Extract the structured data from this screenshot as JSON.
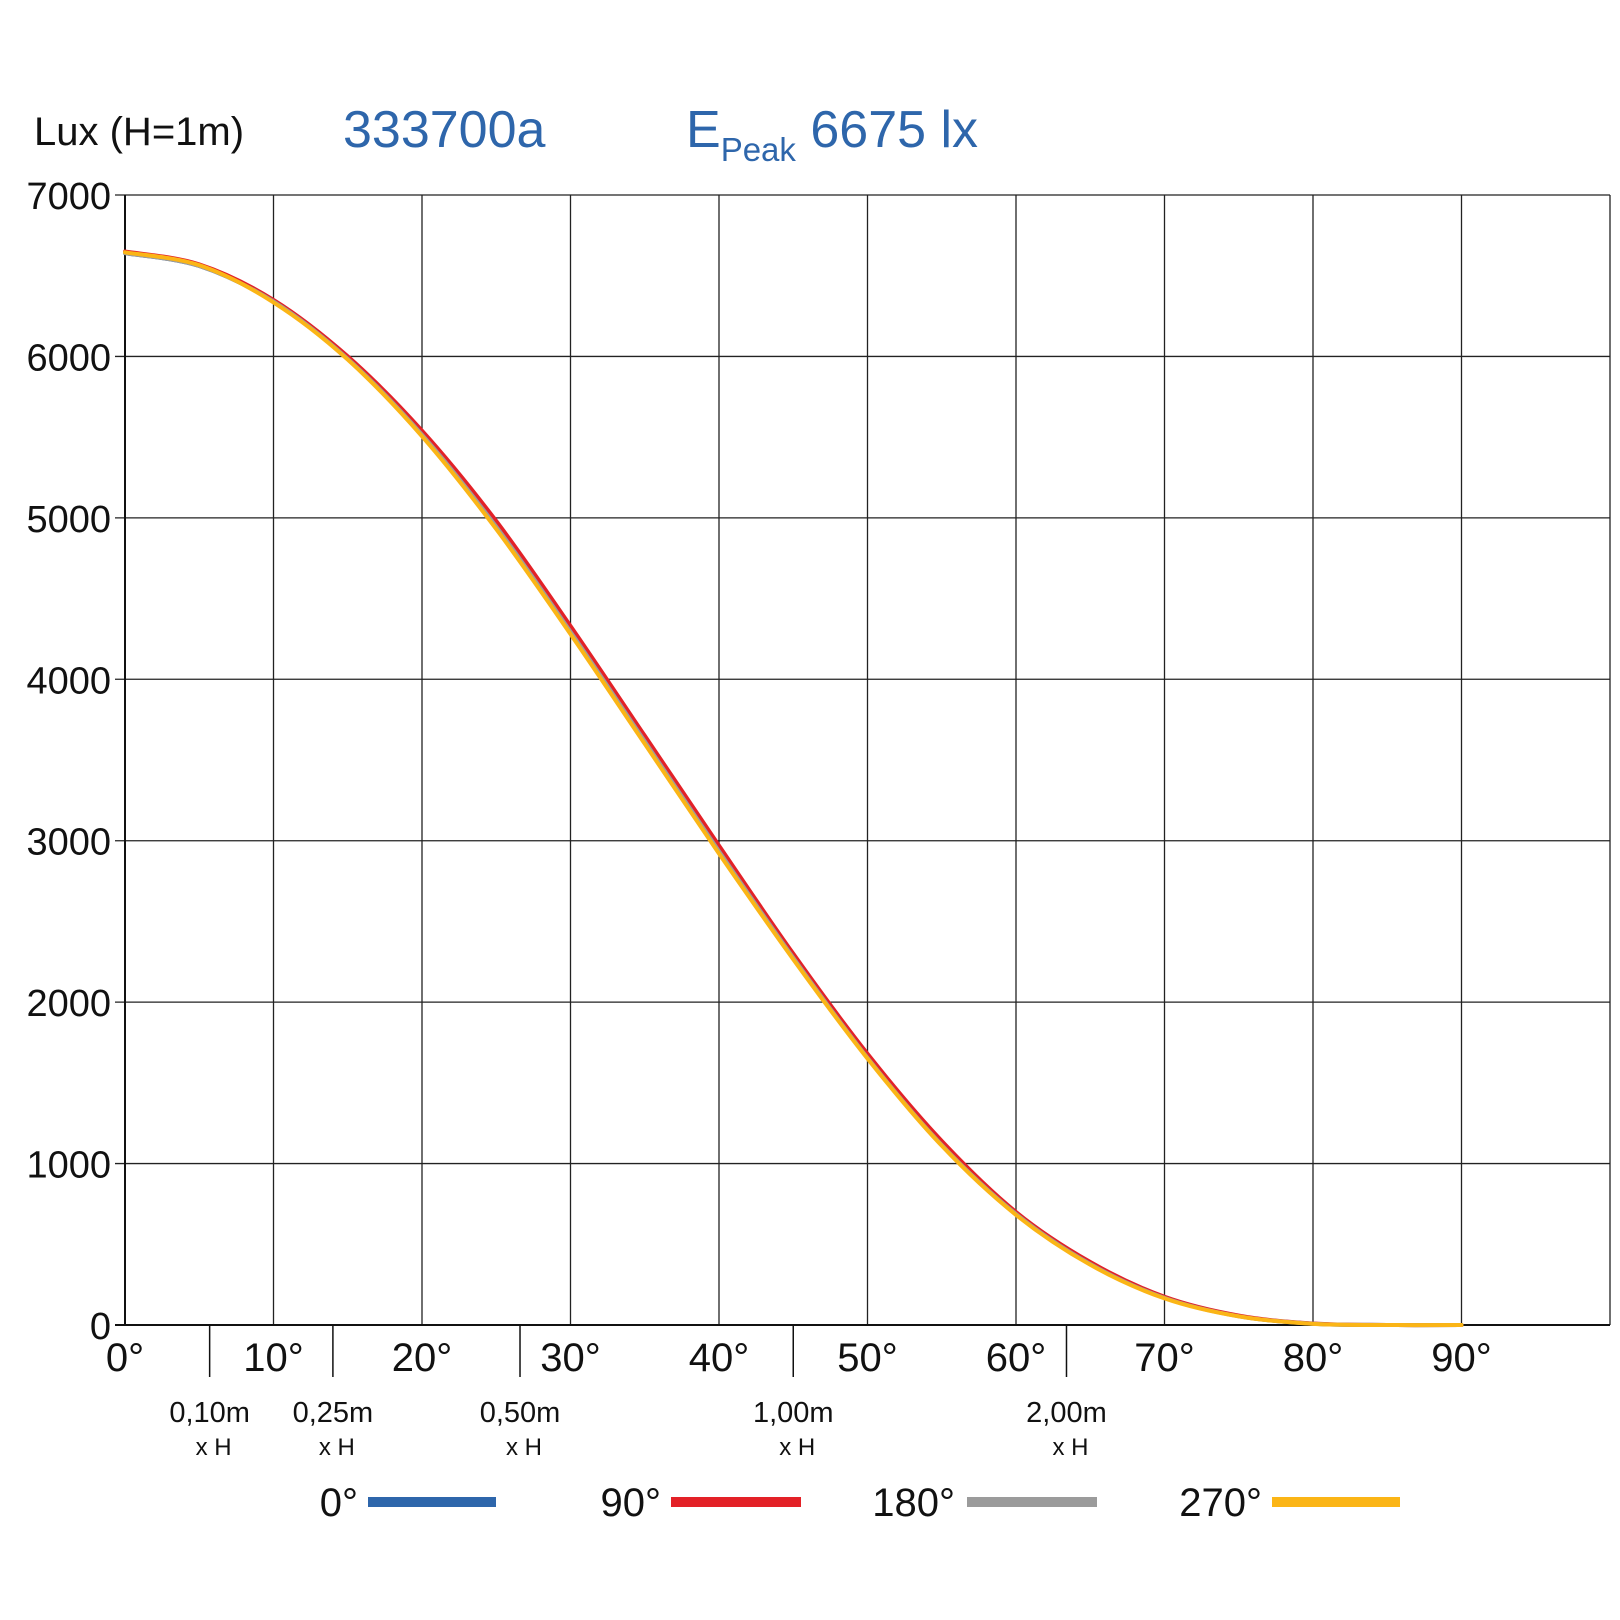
{
  "header": {
    "unit_label": "Lux (H=1m)",
    "model": "333700a",
    "peak_symbol": "E",
    "peak_subscript": "Peak",
    "peak_value": "6675 lx"
  },
  "chart_data": {
    "type": "line",
    "title": "",
    "xlabel": "",
    "ylabel": "Lux (H=1m)",
    "xlim": [
      0,
      100
    ],
    "ylim": [
      0,
      7000
    ],
    "x_ticks": [
      0,
      10,
      20,
      30,
      40,
      50,
      60,
      70,
      80,
      90
    ],
    "x_tick_labels": [
      "0°",
      "10°",
      "20°",
      "30°",
      "40°",
      "50°",
      "60°",
      "70°",
      "80°",
      "90°"
    ],
    "y_ticks": [
      0,
      1000,
      2000,
      3000,
      4000,
      5000,
      6000,
      7000
    ],
    "y_tick_labels": [
      "0",
      "1000",
      "2000",
      "3000",
      "4000",
      "5000",
      "6000",
      "7000"
    ],
    "grid": true,
    "distance_markers": [
      {
        "angle": 5.7,
        "label": "0,10m",
        "sub": "x H"
      },
      {
        "angle": 14.0,
        "label": "0,25m",
        "sub": "x H"
      },
      {
        "angle": 26.6,
        "label": "0,50m",
        "sub": "x H"
      },
      {
        "angle": 45.0,
        "label": "1,00m",
        "sub": "x H"
      },
      {
        "angle": 63.4,
        "label": "2,00m",
        "sub": "x H"
      }
    ],
    "x": [
      0,
      5,
      10,
      15,
      20,
      25,
      30,
      35,
      40,
      45,
      50,
      55,
      60,
      65,
      70,
      75,
      80,
      85,
      90
    ],
    "series": [
      {
        "name": "0°",
        "color": "#2e66ab",
        "values": [
          6640,
          6560,
          6340,
          5990,
          5520,
          4950,
          4300,
          3620,
          2940,
          2280,
          1660,
          1120,
          690,
          380,
          170,
          55,
          8,
          0,
          0
        ]
      },
      {
        "name": "90°",
        "color": "#e32127",
        "values": [
          6650,
          6570,
          6350,
          6000,
          5540,
          4980,
          4330,
          3650,
          2970,
          2300,
          1680,
          1140,
          700,
          390,
          175,
          58,
          9,
          0,
          0
        ]
      },
      {
        "name": "180°",
        "color": "#9b9b9b",
        "values": [
          6640,
          6560,
          6340,
          5985,
          5515,
          4945,
          4295,
          3615,
          2935,
          2275,
          1655,
          1115,
          688,
          378,
          168,
          54,
          8,
          0,
          0
        ]
      },
      {
        "name": "270°",
        "color": "#fbb516",
        "values": [
          6645,
          6565,
          6335,
          5980,
          5505,
          4930,
          4280,
          3600,
          2920,
          2265,
          1650,
          1110,
          682,
          373,
          165,
          53,
          7,
          0,
          0
        ]
      }
    ]
  }
}
